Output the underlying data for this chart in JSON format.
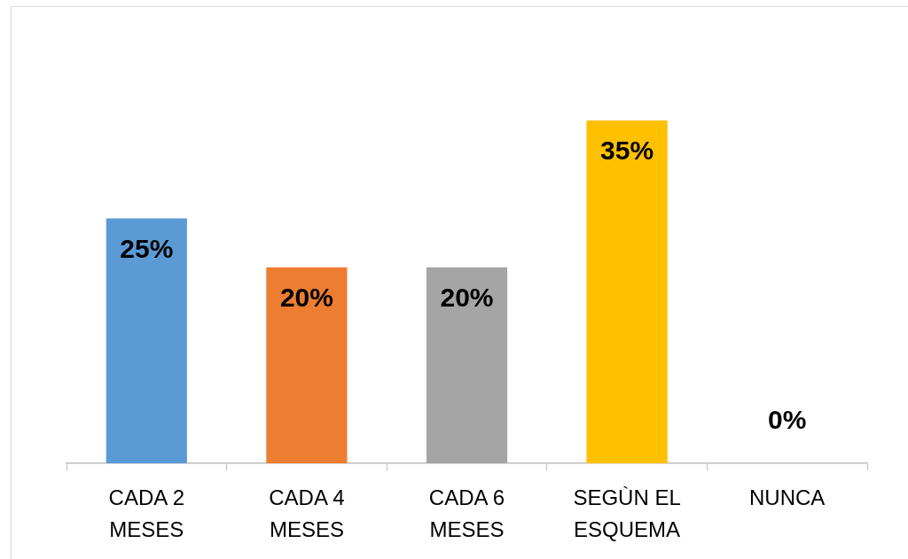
{
  "chart_data": {
    "type": "bar",
    "categories": [
      "CADA 2 MESES",
      "CADA 4 MESES",
      "CADA 6 MESES",
      "SEGÙN EL ESQUEMA",
      "NUNCA"
    ],
    "values": [
      25,
      20,
      20,
      35,
      0
    ],
    "colors": [
      "#5b9bd5",
      "#ed7d31",
      "#a5a5a5",
      "#ffc000",
      null
    ],
    "value_labels": [
      "25%",
      "20%",
      "20%",
      "35%",
      "0%"
    ]
  }
}
